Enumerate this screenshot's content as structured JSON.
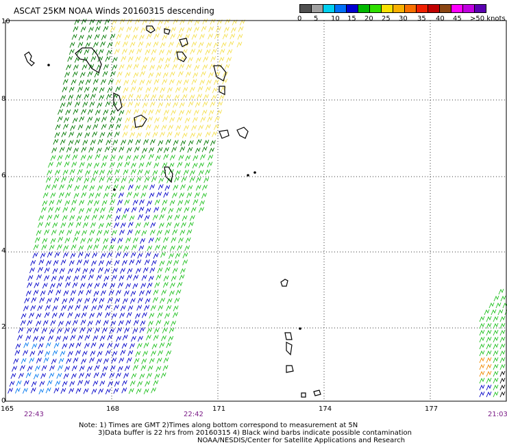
{
  "title": "ASCAT 25KM NOAA Winds 20160315 descending",
  "legend": {
    "swatches": [
      "#505050",
      "#a0a0a0",
      "#00d0f0",
      "#0070f8",
      "#0000d0",
      "#00b800",
      "#30e000",
      "#f8e000",
      "#f8b000",
      "#f87000",
      "#f02000",
      "#c00000",
      "#8b4513",
      "#ff00ff",
      "#c000e0",
      "#5a00b0"
    ],
    "labels": [
      "0",
      "5",
      "10",
      "15",
      "20",
      "25",
      "30",
      "35",
      "40",
      "45",
      ">50 knots"
    ]
  },
  "axes": {
    "x_ticks": [
      "165",
      "168",
      "171",
      "174",
      "177"
    ],
    "y_ticks": [
      "10",
      "8",
      "6",
      "4",
      "2",
      "0"
    ]
  },
  "times": [
    "22:43",
    "22:42",
    "21:03"
  ],
  "notes": {
    "line1": "Note: 1) Times are GMT 2)Times along bottom correspond to measurement at 5N",
    "line2": "3)Data buffer is 22 hrs from 20160315 4) Black wind barbs indicate possible contamination",
    "line3": "NOAA/NESDIS/Center for Satellite Applications and Research"
  },
  "swath_colors": {
    "yellow": "#f5e050",
    "dark_green": "#007800",
    "green": "#20c020",
    "blue": "#0000c8",
    "light_blue": "#0078f0",
    "orange": "#f08a00",
    "contaminated": "#000000"
  }
}
